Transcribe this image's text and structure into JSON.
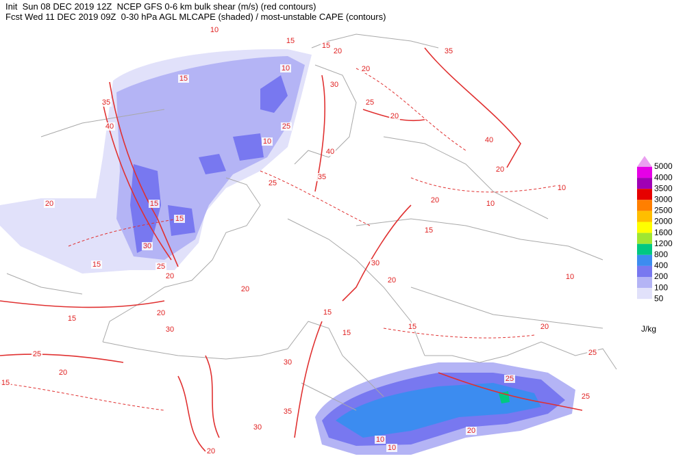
{
  "header": {
    "line1": "Init  Sun 08 DEC 2019 12Z  NCEP GFS 0-6 km bulk shear (m/s) (red contours)",
    "line2": "Fcst Wed 11 DEC 2019 09Z  0-30 hPa AGL MLCAPE (shaded) / most-unstable CAPE (contours)"
  },
  "legend": {
    "levels": [
      5000,
      4000,
      3500,
      3000,
      2500,
      2000,
      1600,
      1200,
      800,
      400,
      200,
      100,
      50
    ],
    "colors": [
      "#eaa0f0",
      "#e600e6",
      "#a000b4",
      "#e60000",
      "#ff7f00",
      "#ffbe00",
      "#ffff00",
      "#a0e632",
      "#00c882",
      "#3c8cf0",
      "#7878f0",
      "#b4b4f5",
      "#e1e1fa"
    ],
    "unit": "J/kg"
  },
  "contour_labels": [
    10,
    15,
    15,
    20,
    35,
    15,
    10,
    20,
    30,
    25,
    35,
    20,
    40,
    25,
    10,
    40,
    35,
    40,
    20,
    10,
    20,
    25,
    15,
    20,
    10,
    15,
    30,
    15,
    30,
    15,
    25,
    20,
    20,
    20,
    10,
    15,
    20,
    15,
    30,
    15,
    15,
    20,
    25,
    20,
    15,
    30,
    25,
    35,
    30,
    20,
    10,
    10,
    20,
    25,
    25
  ]
}
